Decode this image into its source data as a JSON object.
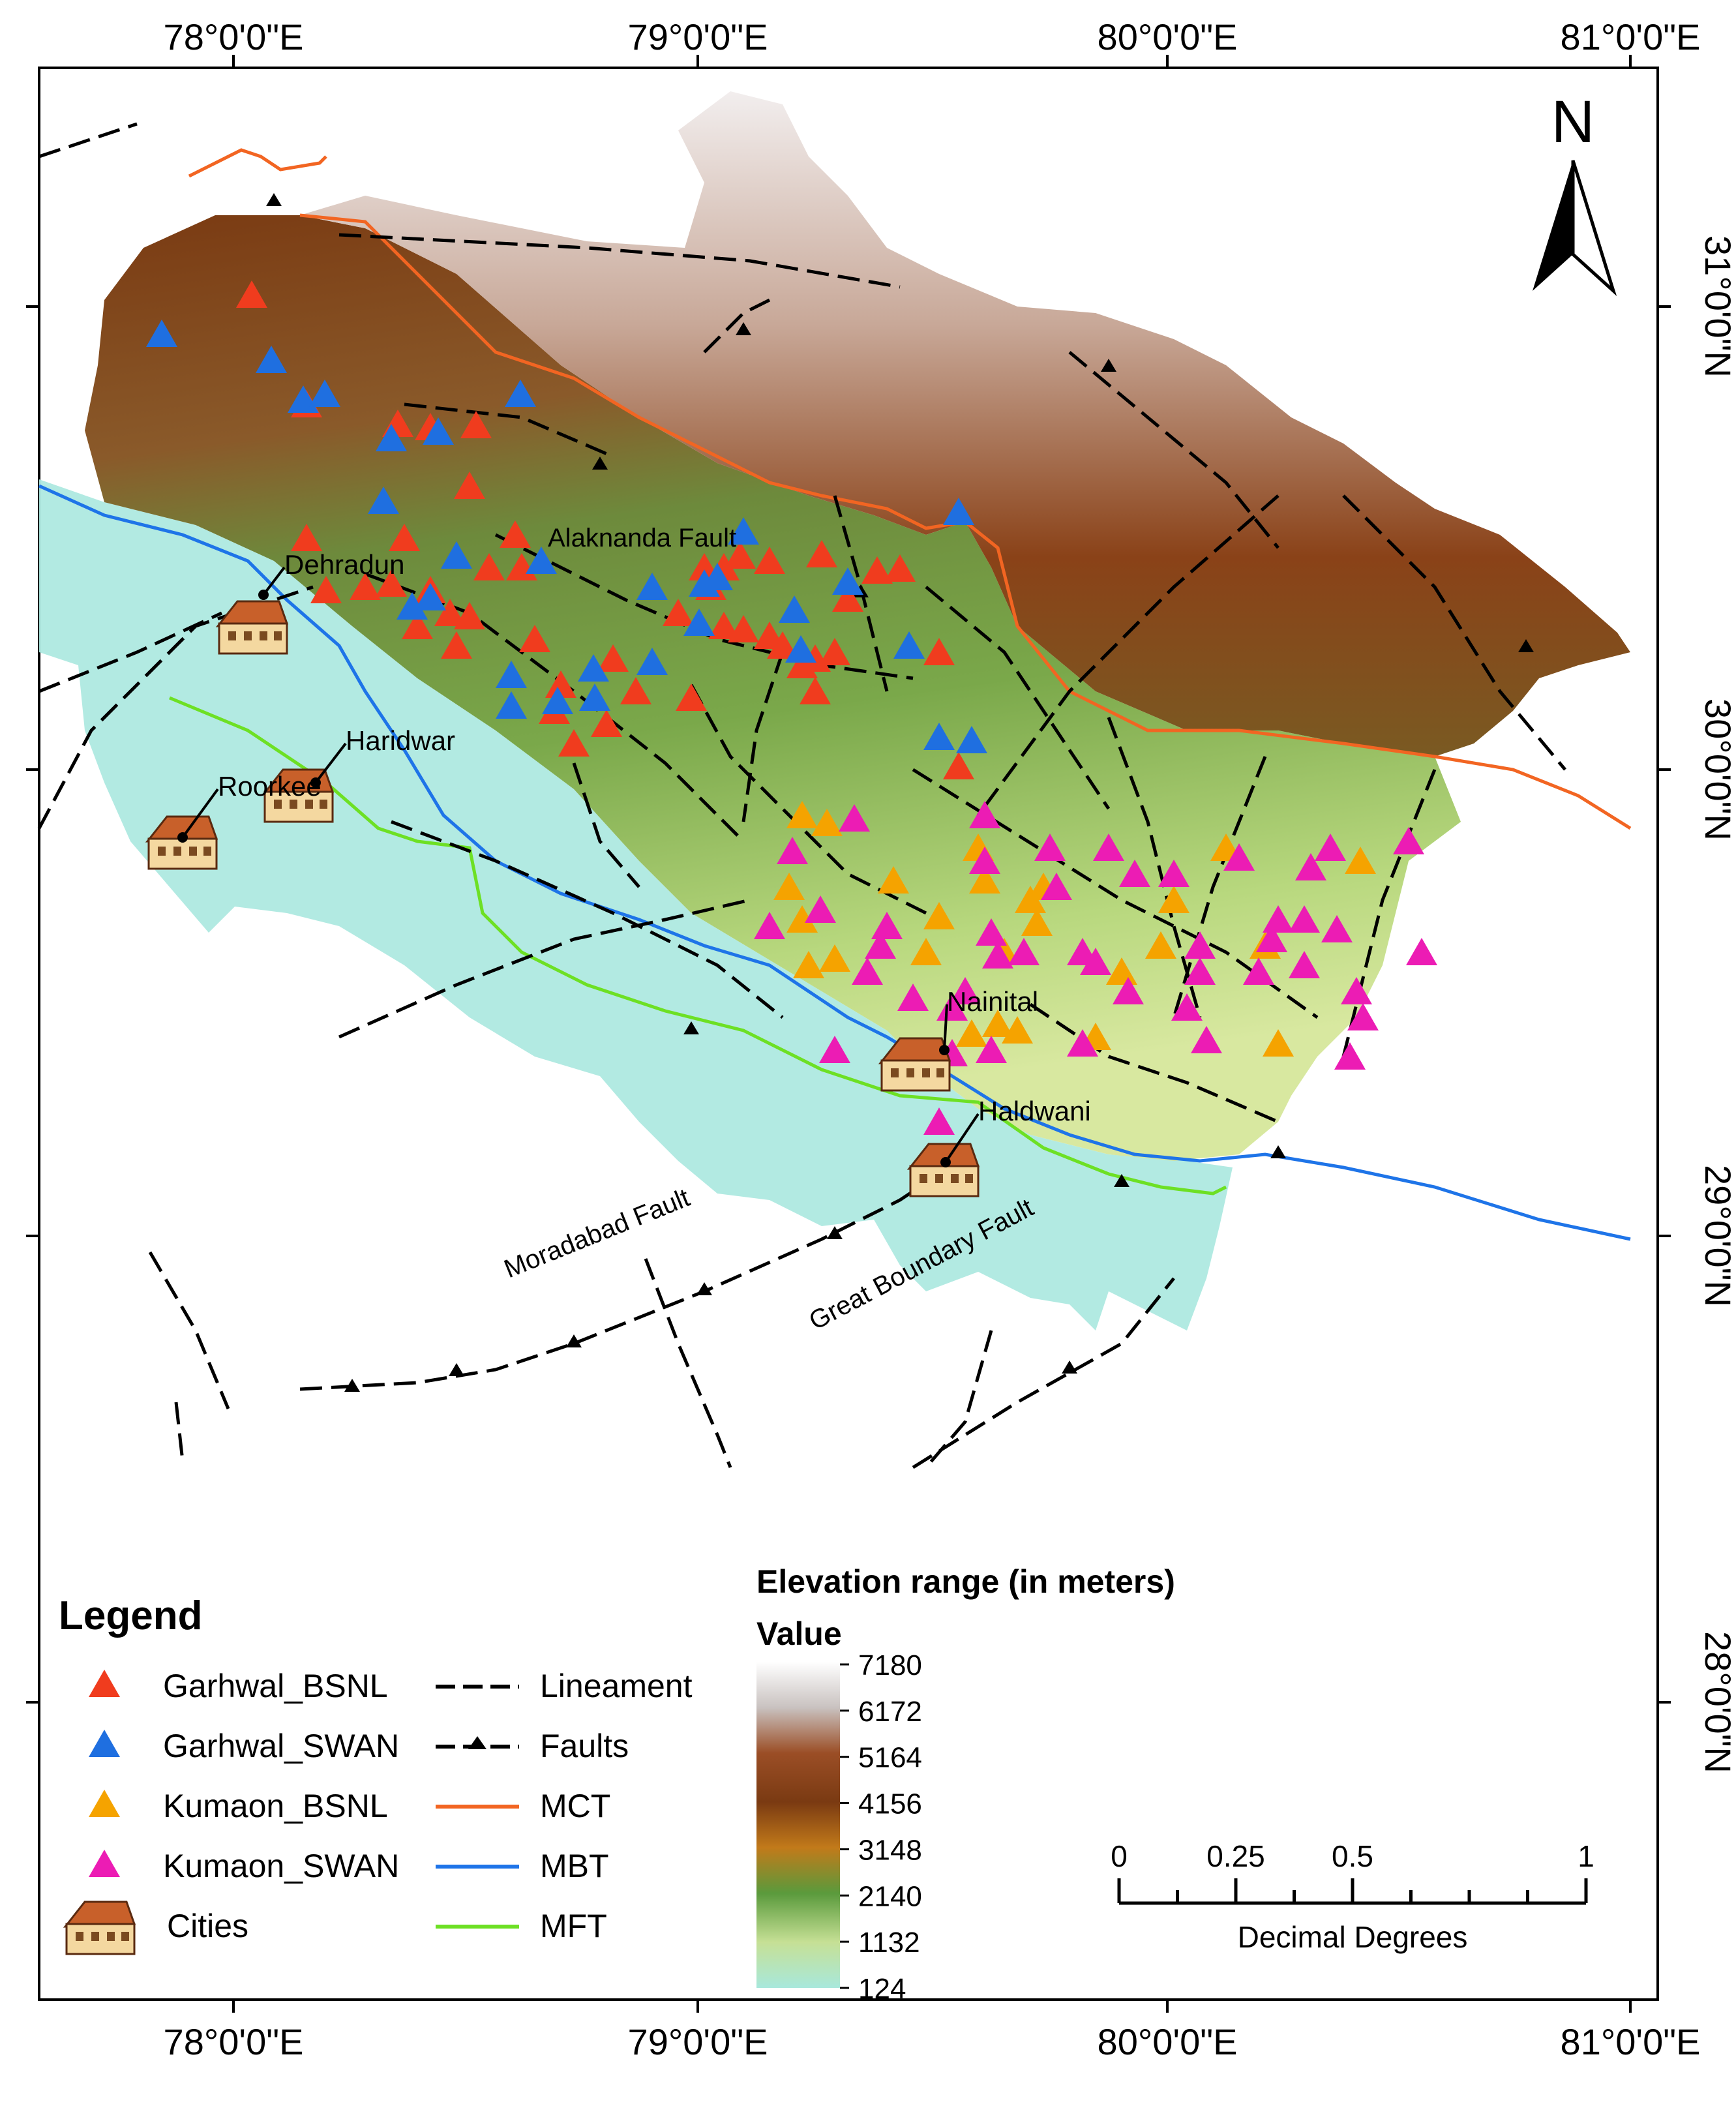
{
  "top_labels": [
    "78°0'0\"E",
    "79°0'0\"E",
    "80°0'0\"E",
    "81°0'0\"E"
  ],
  "bottom_labels": [
    "78°0'0\"E",
    "79°0'0\"E",
    "80°0'0\"E",
    "81°0'0\"E"
  ],
  "right_labels": [
    "31°0'0\"N",
    "30°0'0\"N",
    "29°0'0\"N",
    "28°0'0\"N"
  ],
  "north_arrow": {
    "letter": "N"
  },
  "cities": [
    {
      "name": "Dehradun"
    },
    {
      "name": "Haridwar"
    },
    {
      "name": "Roorkee"
    },
    {
      "name": "Nainital"
    },
    {
      "name": "Haldwani"
    }
  ],
  "feature_labels": {
    "alaknanda": "Alaknanda Fault",
    "moradabad": "Moradabad Fault",
    "great_boundary": "Great Boundary Fault"
  },
  "legend": {
    "title": "Legend",
    "items": [
      {
        "label": "Garhwal_BSNL",
        "symbol": "triangle",
        "color": "#f03c1e"
      },
      {
        "label": "Garhwal_SWAN",
        "symbol": "triangle",
        "color": "#1f6fe0"
      },
      {
        "label": "Kumaon_BSNL",
        "symbol": "triangle",
        "color": "#f5a300"
      },
      {
        "label": "Kumaon_SWAN",
        "symbol": "triangle",
        "color": "#ec1cb4"
      },
      {
        "label": "Cities",
        "symbol": "house-icon"
      }
    ],
    "lines": [
      {
        "label": "Lineament",
        "style": "dashed",
        "color": "#000000"
      },
      {
        "label": "Faults",
        "style": "dashed-with-triangles",
        "color": "#000000"
      },
      {
        "label": "MCT",
        "style": "solid",
        "color": "#f26522"
      },
      {
        "label": "MBT",
        "style": "solid",
        "color": "#1e74e8"
      },
      {
        "label": "MFT",
        "style": "solid",
        "color": "#6de024"
      }
    ]
  },
  "elevation": {
    "title": "Elevation range (in meters)",
    "subtitle": "Value",
    "ticks": [
      "7180",
      "6172",
      "5164",
      "4156",
      "3148",
      "2140",
      "1132",
      "124"
    ],
    "colors": [
      "#ffffff",
      "#c8c0bc",
      "#9a4a1e",
      "#7a3a10",
      "#c27a1a",
      "#5c9a3c",
      "#c8e096",
      "#a8e8dc"
    ]
  },
  "scale_bar": {
    "tick_labels": [
      "0",
      "0.25",
      "0.5",
      "1"
    ],
    "unit": "Decimal Degrees"
  },
  "station_counts": {
    "Garhwal_BSNL": 47,
    "Garhwal_SWAN": 30,
    "Kumaon_BSNL": 26,
    "Kumaon_SWAN": 47
  }
}
